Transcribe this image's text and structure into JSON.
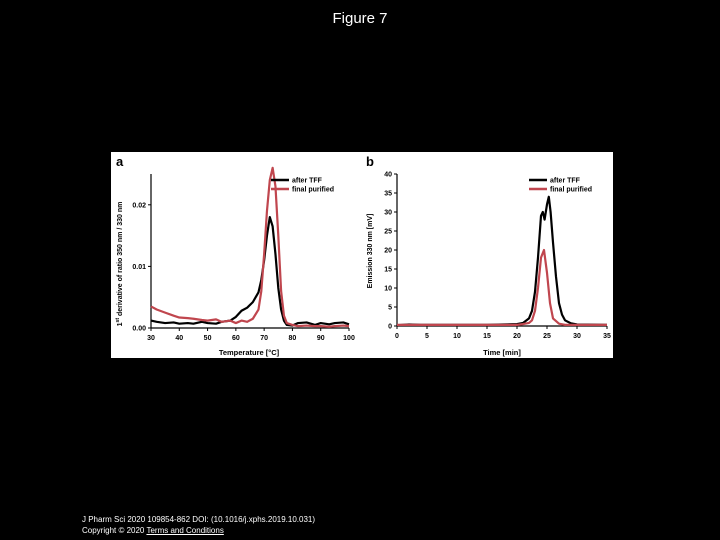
{
  "slide": {
    "title": "Figure 7"
  },
  "footer": {
    "citation": "J Pharm Sci 2020 109854-862 DOI: (10.1016/j.xphs.2019.10.031)",
    "copyright": "Copyright © 2020",
    "terms_link": "Terms and Conditions"
  },
  "chart_data": [
    {
      "type": "line",
      "panel_label": "a",
      "xlabel": "Temperature [°C]",
      "ylabel_prefix": "1",
      "ylabel_sup": "st",
      "ylabel_rest": " derivative of ratio 350 nm / 330 nm",
      "xlim": [
        30,
        100
      ],
      "ylim": [
        0.0,
        0.025
      ],
      "xticks": [
        30,
        40,
        50,
        60,
        70,
        80,
        90,
        100
      ],
      "yticks": [
        0.0,
        0.01,
        0.02
      ],
      "ytick_labels": [
        "0.00",
        "0.01",
        "0.02"
      ],
      "legend_position": "top-right",
      "series": [
        {
          "name": "after TFF",
          "color": "#000000",
          "x": [
            30,
            32,
            35,
            38,
            40,
            43,
            45,
            48,
            50,
            53,
            55,
            58,
            60,
            62,
            64,
            66,
            68,
            69,
            70,
            71,
            72,
            73,
            74,
            75,
            76,
            77,
            78,
            80,
            82,
            85,
            88,
            90,
            93,
            95,
            98,
            100
          ],
          "y": [
            0.0012,
            0.001,
            0.0008,
            0.0009,
            0.0007,
            0.0008,
            0.0007,
            0.001,
            0.0008,
            0.0007,
            0.001,
            0.0012,
            0.0018,
            0.0028,
            0.0033,
            0.0042,
            0.0058,
            0.0078,
            0.011,
            0.015,
            0.018,
            0.0165,
            0.012,
            0.0065,
            0.003,
            0.0012,
            0.0005,
            0.0004,
            0.0008,
            0.0009,
            0.0005,
            0.0008,
            0.0006,
            0.0008,
            0.0009,
            0.0006
          ]
        },
        {
          "name": "final purified",
          "color": "#c0464e",
          "x": [
            30,
            32,
            35,
            38,
            40,
            43,
            45,
            48,
            50,
            53,
            55,
            58,
            60,
            62,
            64,
            66,
            68,
            69,
            70,
            71,
            72,
            73,
            74,
            75,
            76,
            77,
            78,
            80,
            82,
            85,
            88,
            90,
            93,
            95,
            98,
            100
          ],
          "y": [
            0.0035,
            0.003,
            0.0025,
            0.002,
            0.0017,
            0.0016,
            0.0015,
            0.0013,
            0.0012,
            0.0014,
            0.001,
            0.0012,
            0.0008,
            0.0012,
            0.001,
            0.0015,
            0.003,
            0.006,
            0.012,
            0.019,
            0.024,
            0.026,
            0.023,
            0.015,
            0.006,
            0.002,
            0.0008,
            0.0005,
            0.0003,
            0.0004,
            0.0003,
            0.0003,
            0.0002,
            0.0003,
            0.0004,
            0.0003
          ]
        }
      ]
    },
    {
      "type": "line",
      "panel_label": "b",
      "xlabel": "Time [min]",
      "ylabel": "Emission 330 nm [mV]",
      "xlim": [
        0,
        35
      ],
      "ylim": [
        0,
        40
      ],
      "xticks": [
        0,
        5,
        10,
        15,
        20,
        25,
        30,
        35
      ],
      "yticks": [
        0,
        5,
        10,
        15,
        20,
        25,
        30,
        35,
        40
      ],
      "legend_position": "top-right",
      "series": [
        {
          "name": "after TFF",
          "color": "#000000",
          "x": [
            0,
            2,
            4,
            6,
            10,
            15,
            20,
            21,
            22,
            22.5,
            23,
            23.5,
            24,
            24.3,
            24.6,
            25,
            25.3,
            25.6,
            26,
            26.5,
            27,
            27.5,
            28,
            29,
            30,
            35
          ],
          "y": [
            0.2,
            0.4,
            0.3,
            0.3,
            0.3,
            0.3,
            0.5,
            0.8,
            2.0,
            4.0,
            9.0,
            18.0,
            29.0,
            30.0,
            28.0,
            32.0,
            34.0,
            30.0,
            22.0,
            13.0,
            6.0,
            3.0,
            1.5,
            0.7,
            0.4,
            0.3
          ]
        },
        {
          "name": "final purified",
          "color": "#c0464e",
          "x": [
            0,
            5,
            10,
            15,
            20,
            21,
            22,
            22.5,
            23,
            23.5,
            24,
            24.5,
            25,
            25.5,
            26,
            27,
            28,
            30,
            35
          ],
          "y": [
            0.3,
            0.3,
            0.3,
            0.3,
            0.3,
            0.5,
            0.8,
            1.5,
            4.0,
            10.0,
            18.0,
            20.0,
            14.0,
            6.0,
            2.0,
            0.6,
            0.3,
            0.3,
            0.3
          ]
        }
      ]
    }
  ]
}
